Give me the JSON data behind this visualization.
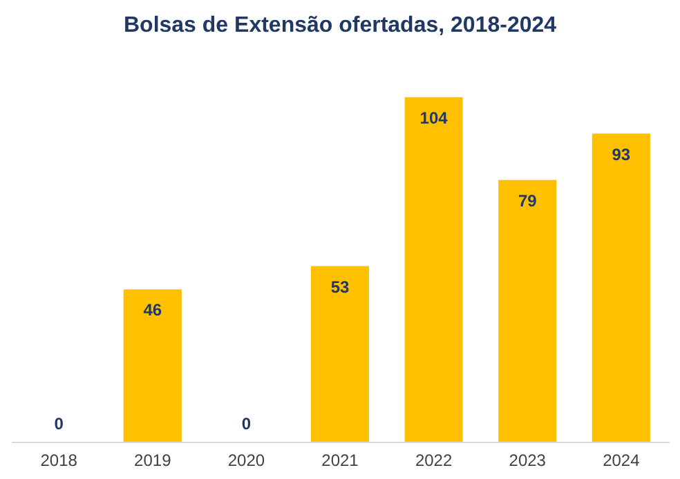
{
  "chart_data": {
    "type": "bar",
    "title": "Bolsas de Extensão ofertadas, 2018-2024",
    "categories": [
      "2018",
      "2019",
      "2020",
      "2021",
      "2022",
      "2023",
      "2024"
    ],
    "values": [
      0,
      46,
      0,
      53,
      104,
      79,
      93
    ],
    "color": "#ffc000",
    "data_labels": true,
    "grid": false,
    "tick_labels": "x"
  }
}
